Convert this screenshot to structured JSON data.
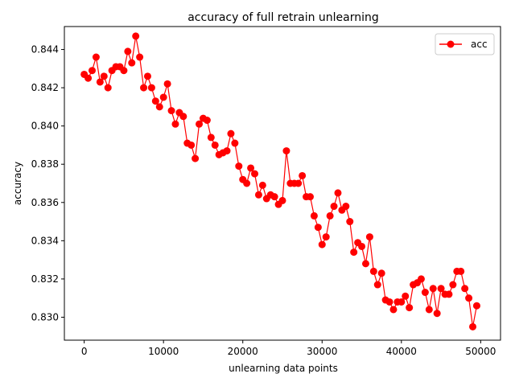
{
  "chart_data": {
    "type": "line",
    "title": "accuracy of full retrain unlearning",
    "xlabel": "unlearning data points",
    "ylabel": "accuracy",
    "xlim": [
      -2500,
      52500
    ],
    "ylim": [
      0.8288,
      0.8452
    ],
    "xticks": [
      0,
      10000,
      20000,
      30000,
      40000,
      50000
    ],
    "yticks": [
      0.83,
      0.832,
      0.834,
      0.836,
      0.838,
      0.84,
      0.842,
      0.844
    ],
    "xtick_labels": [
      "0",
      "10000",
      "20000",
      "30000",
      "40000",
      "50000"
    ],
    "ytick_labels": [
      "0.830",
      "0.832",
      "0.834",
      "0.836",
      "0.838",
      "0.840",
      "0.842",
      "0.844"
    ],
    "grid": false,
    "legend_position": "upper-right",
    "series": [
      {
        "name": "acc",
        "color": "#ff0000",
        "marker": "circle",
        "x": [
          0,
          500,
          1000,
          1500,
          2000,
          2500,
          3000,
          3500,
          4000,
          4500,
          5000,
          5500,
          6000,
          6500,
          7000,
          7500,
          8000,
          8500,
          9000,
          9500,
          10000,
          10500,
          11000,
          11500,
          12000,
          12500,
          13000,
          13500,
          14000,
          14500,
          15000,
          15500,
          16000,
          16500,
          17000,
          17500,
          18000,
          18500,
          19000,
          19500,
          20000,
          20500,
          21000,
          21500,
          22000,
          22500,
          23000,
          23500,
          24000,
          24500,
          25000,
          25500,
          26000,
          26500,
          27000,
          27500,
          28000,
          28500,
          29000,
          29500,
          30000,
          30500,
          31000,
          31500,
          32000,
          32500,
          33000,
          33500,
          34000,
          34500,
          35000,
          35500,
          36000,
          36500,
          37000,
          37500,
          38000,
          38500,
          39000,
          39500,
          40000,
          40500,
          41000,
          41500,
          42000,
          42500,
          43000,
          43500,
          44000,
          44500,
          45000,
          45500,
          46000,
          46500,
          47000,
          47500,
          48000,
          48500,
          49000,
          49500
        ],
        "y": [
          0.8427,
          0.8425,
          0.8429,
          0.8436,
          0.8423,
          0.8426,
          0.842,
          0.8429,
          0.8431,
          0.8431,
          0.8429,
          0.8439,
          0.8433,
          0.8447,
          0.8436,
          0.842,
          0.8426,
          0.842,
          0.8413,
          0.841,
          0.8415,
          0.8422,
          0.8408,
          0.8401,
          0.8407,
          0.8405,
          0.8391,
          0.839,
          0.8383,
          0.8401,
          0.8404,
          0.8403,
          0.8394,
          0.839,
          0.8385,
          0.8386,
          0.8387,
          0.8396,
          0.8391,
          0.8379,
          0.8372,
          0.837,
          0.8378,
          0.8375,
          0.8364,
          0.8369,
          0.8362,
          0.8364,
          0.8363,
          0.8359,
          0.8361,
          0.8387,
          0.837,
          0.837,
          0.837,
          0.8374,
          0.8363,
          0.8363,
          0.8353,
          0.8347,
          0.8338,
          0.8342,
          0.8353,
          0.8358,
          0.8365,
          0.8356,
          0.8358,
          0.835,
          0.8334,
          0.8339,
          0.8337,
          0.8328,
          0.8342,
          0.8324,
          0.8317,
          0.8323,
          0.8309,
          0.8308,
          0.8304,
          0.8308,
          0.8308,
          0.8311,
          0.8305,
          0.8317,
          0.8318,
          0.832,
          0.8313,
          0.8304,
          0.8315,
          0.8302,
          0.8315,
          0.8312,
          0.8312,
          0.8317,
          0.8324,
          0.8324,
          0.8315,
          0.831,
          0.8295,
          0.8306
        ]
      }
    ]
  }
}
